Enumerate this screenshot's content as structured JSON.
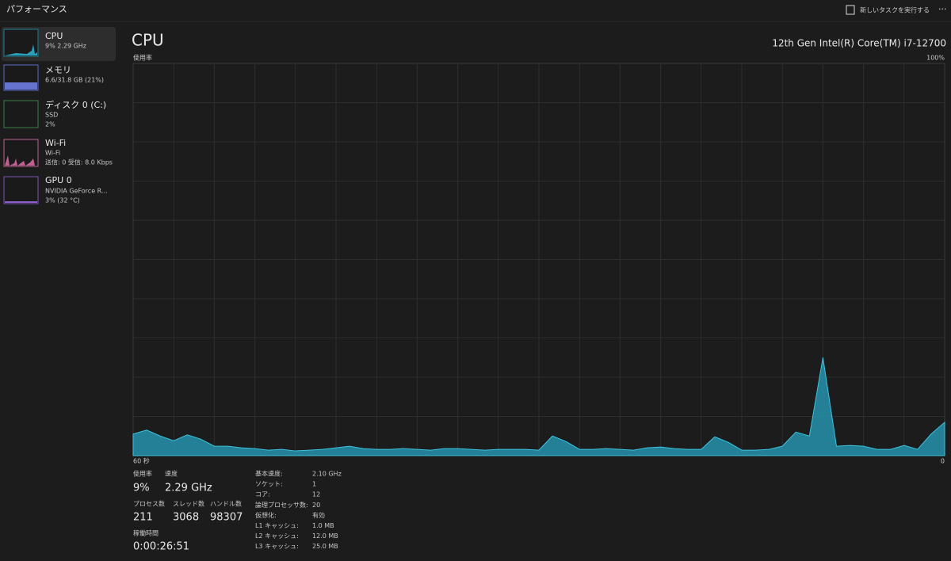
{
  "header": {
    "title": "パフォーマンス",
    "run_task": "新しいタスクを実行する",
    "more": "···"
  },
  "sidebar": [
    {
      "name": "CPU",
      "lines": [
        "9% 2.29 GHz"
      ]
    },
    {
      "name": "メモリ",
      "lines": [
        "6.6/31.8 GB (21%)"
      ]
    },
    {
      "name": "ディスク 0 (C:)",
      "lines": [
        "SSD",
        "2%"
      ]
    },
    {
      "name": "Wi-Fi",
      "lines": [
        "Wi-Fi",
        "送信: 0 受信: 8.0 Kbps"
      ]
    },
    {
      "name": "GPU 0",
      "lines": [
        "NVIDIA GeForce R...",
        "3% (32 °C)"
      ]
    }
  ],
  "main": {
    "title": "CPU",
    "model": "12th Gen Intel(R) Core(TM) i7-12700",
    "graph": {
      "y_label": "使用率",
      "max_label": "100%",
      "min_label": "0",
      "time_label": "60 秒",
      "ylim": [
        0,
        100
      ],
      "values": [
        5.5,
        6.5,
        5,
        3.8,
        5.3,
        4.2,
        2.4,
        2.4,
        2,
        1.8,
        1.4,
        1.6,
        1.2,
        1.4,
        1.6,
        2,
        2.4,
        1.8,
        1.6,
        1.6,
        1.8,
        1.6,
        1.4,
        1.8,
        1.8,
        1.6,
        1.4,
        1.6,
        1.6,
        1.6,
        1.4,
        5,
        3.6,
        1.6,
        1.6,
        1.8,
        1.6,
        1.4,
        2,
        2.2,
        1.8,
        1.6,
        1.6,
        4.8,
        3.4,
        1.4,
        1.4,
        1.6,
        2.4,
        6,
        5,
        25,
        2.4,
        2.6,
        2.4,
        1.6,
        1.6,
        2.6,
        1.6,
        5.5,
        8.5
      ]
    },
    "stats": [
      {
        "label": "使用率",
        "value": "9%"
      },
      {
        "label": "速度",
        "value": "2.29 GHz"
      },
      {
        "label": "プロセス数",
        "value": "211"
      },
      {
        "label": "スレッド数",
        "value": "3068"
      },
      {
        "label": "ハンドル数",
        "value": "98307"
      },
      {
        "label": "稼働時間",
        "value": "0:00:26:51"
      }
    ],
    "details": [
      {
        "label": "基本速度:",
        "value": "2.10 GHz"
      },
      {
        "label": "ソケット:",
        "value": "1"
      },
      {
        "label": "コア:",
        "value": "12"
      },
      {
        "label": "論理プロセッサ数:",
        "value": "20"
      },
      {
        "label": "仮想化:",
        "value": "有効"
      },
      {
        "label": "L1 キャッシュ:",
        "value": "1.0 MB"
      },
      {
        "label": "L2 キャッシュ:",
        "value": "12.0 MB"
      },
      {
        "label": "L3 キャッシュ:",
        "value": "25.0 MB"
      }
    ]
  }
}
